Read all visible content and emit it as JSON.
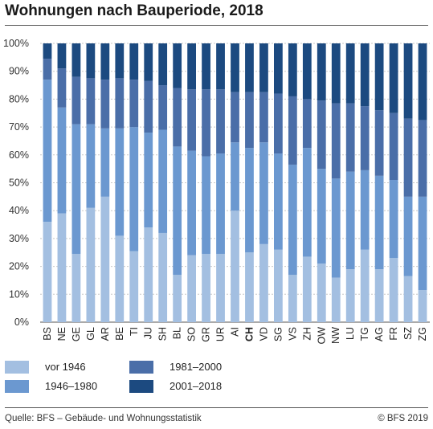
{
  "title": "Wohnungen nach Bauperiode, 2018",
  "source": "Quelle: BFS – Gebäude- und Wohnungsstatistik",
  "copyright": "© BFS 2019",
  "chart_data": {
    "type": "bar",
    "stacked": true,
    "categories": [
      "BS",
      "NE",
      "GE",
      "GL",
      "AR",
      "BE",
      "TI",
      "JU",
      "SH",
      "BL",
      "SO",
      "GR",
      "UR",
      "AI",
      "CH",
      "VD",
      "SG",
      "VS",
      "ZH",
      "OW",
      "NW",
      "LU",
      "TG",
      "AG",
      "FR",
      "SZ",
      "ZG"
    ],
    "highlight_category": "CH",
    "ylim": [
      0,
      100
    ],
    "yticks": [
      0,
      10,
      20,
      30,
      40,
      50,
      60,
      70,
      80,
      90,
      100
    ],
    "ytick_labels": [
      "0%",
      "10%",
      "20%",
      "30%",
      "40%",
      "50%",
      "60%",
      "70%",
      "80%",
      "90%",
      "100%"
    ],
    "grid": true,
    "legend_position": "bottom",
    "series": [
      {
        "name": "vor 1946",
        "color": "#a3bfe1",
        "values": [
          36,
          39,
          24.5,
          41,
          45,
          31,
          25.5,
          34,
          32,
          17,
          24,
          24.5,
          24.5,
          40,
          25,
          28,
          26,
          17,
          23.5,
          21,
          16,
          19,
          26,
          19,
          23,
          16.5,
          11.5
        ]
      },
      {
        "name": "1946–1980",
        "color": "#6b98d0",
        "values": [
          51,
          38,
          46.5,
          30,
          24.5,
          38.5,
          44.5,
          34,
          37,
          46,
          37.5,
          35,
          36,
          24.5,
          37.5,
          36.5,
          34.5,
          39.5,
          39,
          34,
          35.5,
          35,
          28.5,
          33.5,
          28,
          28.5,
          33.5
        ]
      },
      {
        "name": "1981–2000",
        "color": "#4a6ea8",
        "values": [
          7.5,
          14,
          17,
          16.5,
          17.5,
          18,
          17,
          18.5,
          16,
          21,
          22,
          24,
          23,
          18,
          20,
          18,
          21.5,
          24.5,
          17.5,
          24.5,
          27,
          24.5,
          23,
          23.5,
          24,
          28,
          27.5
        ]
      },
      {
        "name": "2001–2018",
        "color": "#1c4a80",
        "values": [
          5.5,
          9,
          12,
          12.5,
          13,
          12.5,
          13,
          13.5,
          15,
          16,
          16.5,
          16.5,
          16.5,
          17.5,
          17.5,
          17.5,
          18,
          19,
          20,
          20.5,
          21.5,
          21.5,
          22.5,
          24,
          25,
          27,
          27.5
        ]
      }
    ]
  }
}
